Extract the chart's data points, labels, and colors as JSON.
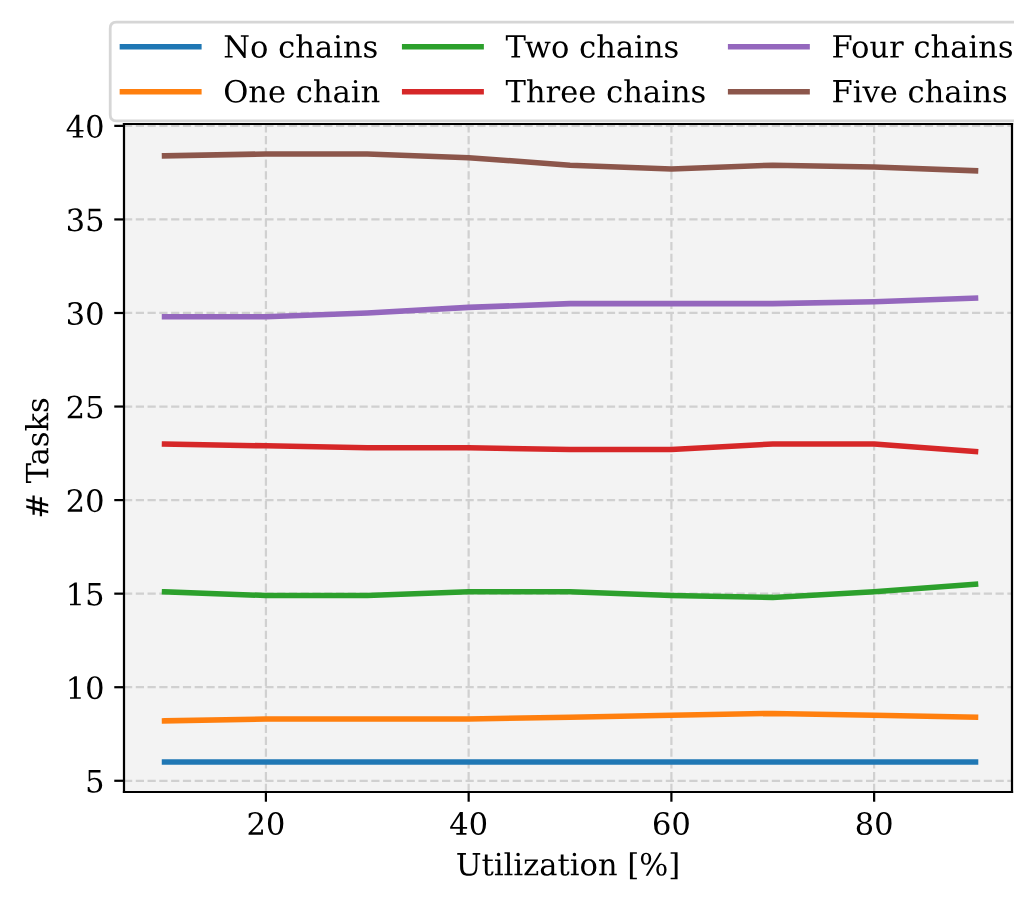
{
  "chart_data": {
    "type": "line",
    "xlabel": "Utilization [%]",
    "ylabel": "# Tasks",
    "x": [
      10,
      20,
      30,
      40,
      50,
      60,
      70,
      80,
      90
    ],
    "series": [
      {
        "name": "No chains",
        "color": "#1f77b4",
        "values": [
          6.0,
          6.0,
          6.0,
          6.0,
          6.0,
          6.0,
          6.0,
          6.0,
          6.0
        ]
      },
      {
        "name": "One chain",
        "color": "#ff7f0e",
        "values": [
          8.2,
          8.3,
          8.3,
          8.3,
          8.4,
          8.5,
          8.6,
          8.5,
          8.4
        ]
      },
      {
        "name": "Two chains",
        "color": "#2ca02c",
        "values": [
          15.1,
          14.9,
          14.9,
          15.1,
          15.1,
          14.9,
          14.8,
          15.1,
          15.5
        ]
      },
      {
        "name": "Three chains",
        "color": "#d62728",
        "values": [
          23.0,
          22.9,
          22.8,
          22.8,
          22.7,
          22.7,
          23.0,
          23.0,
          22.6
        ]
      },
      {
        "name": "Four chains",
        "color": "#9467bd",
        "values": [
          29.8,
          29.8,
          30.0,
          30.3,
          30.5,
          30.5,
          30.5,
          30.6,
          30.8
        ]
      },
      {
        "name": "Five chains",
        "color": "#8c564b",
        "values": [
          38.4,
          38.5,
          38.5,
          38.3,
          37.9,
          37.7,
          37.9,
          37.8,
          37.6
        ]
      }
    ],
    "xlim": [
      6,
      93.6
    ],
    "ylim": [
      4.4,
      40.1
    ],
    "xticks": [
      20,
      40,
      60,
      80
    ],
    "yticks": [
      5,
      10,
      15,
      20,
      25,
      30,
      35,
      40
    ],
    "grid": true,
    "legend": "top",
    "line_style": "solid",
    "marker": "none"
  }
}
